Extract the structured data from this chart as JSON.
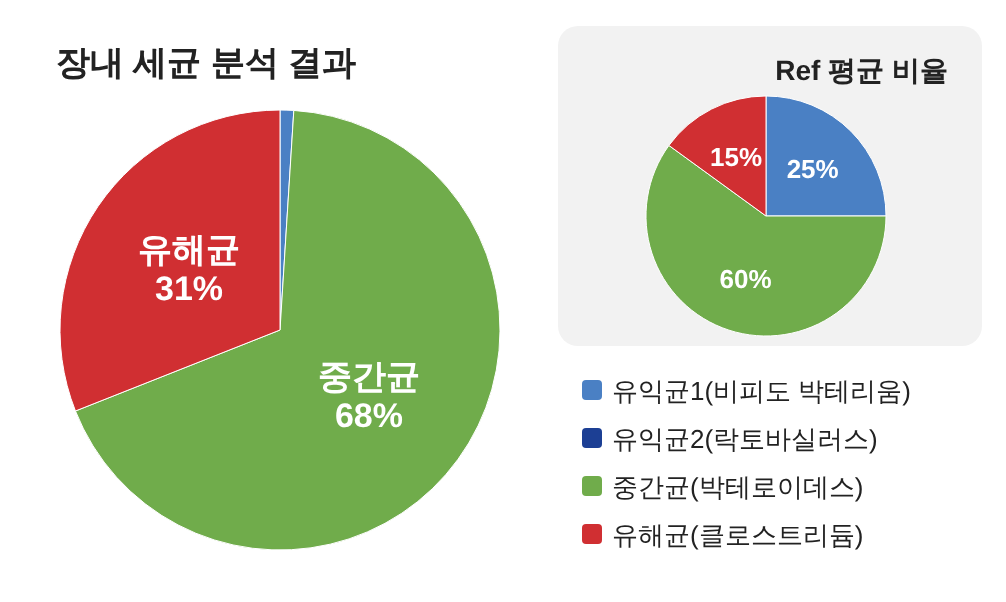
{
  "chart_data": [
    {
      "type": "pie",
      "title": "장내 세균 분석 결과",
      "categories": [
        null,
        null,
        null
      ],
      "values": [
        1,
        68,
        31
      ],
      "colors": [
        "#4a80c4",
        "#70ac4b",
        "#d02f32"
      ],
      "value_labels": [
        null,
        "중간균\n68%",
        "유해균\n31%"
      ],
      "legend": false
    },
    {
      "type": "pie",
      "title": "Ref 평균 비율",
      "categories": [
        "유익균1(비피도 박테리움)",
        "유익균2(락토바실러스)",
        "중간균(박테로이데스)",
        "유해균(클로스트리듐)"
      ],
      "values": [
        25,
        0,
        60,
        15
      ],
      "colors": [
        "#4a80c4",
        "#1c3f94",
        "#70ac4b",
        "#d02f32"
      ],
      "value_labels": [
        "25%",
        null,
        "60%",
        "15%"
      ],
      "legend": "bottom"
    }
  ]
}
